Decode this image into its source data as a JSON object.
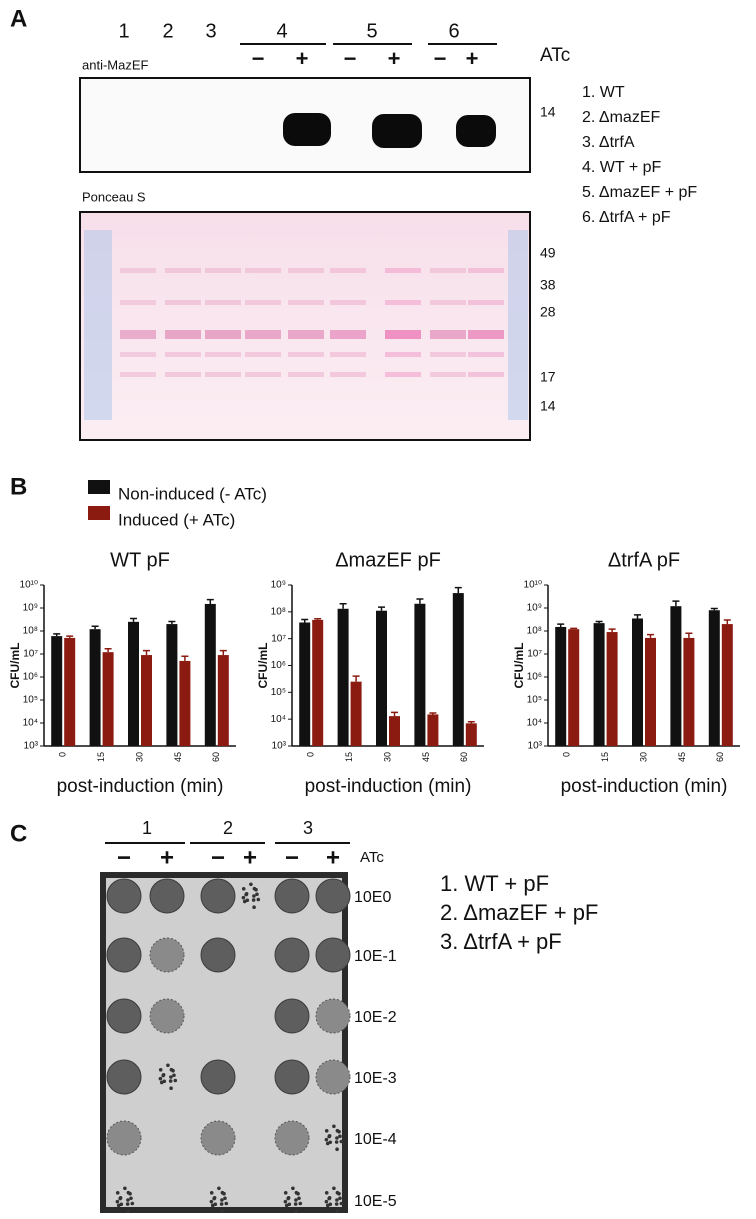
{
  "panel_a": {
    "label": "A",
    "lanes": [
      "1",
      "2",
      "3",
      "4",
      "5",
      "6"
    ],
    "atc_signs": [
      "−",
      "+",
      "−",
      "+",
      "−",
      "+"
    ],
    "atc": "ATc",
    "blot_label": "anti-MazEF",
    "blot_marker": "14",
    "stain_label": "Ponceau S",
    "stain_markers": [
      "49",
      "38",
      "28",
      "17",
      "14"
    ],
    "strains": [
      "1. WT",
      "2. ΔmazEF",
      "3. ΔtrfA",
      "4. WT + pF",
      "5. ΔmazEF + pF",
      "6. ΔtrfA + pF"
    ]
  },
  "panel_b": {
    "label": "B"
  },
  "chart_data": [
    {
      "type": "bar",
      "title": "WT pF",
      "ylabel": "CFU/mL",
      "xlabel": "post-induction (min)",
      "categories": [
        "0",
        "15",
        "30",
        "45",
        "60"
      ],
      "log_scale": true,
      "ylim": [
        1000,
        10000000000
      ],
      "yticks": [
        {
          "value": 1000,
          "label": "10³"
        },
        {
          "value": 10000,
          "label": "10⁴"
        },
        {
          "value": 100000,
          "label": "10⁵"
        },
        {
          "value": 1000000,
          "label": "10⁶"
        },
        {
          "value": 10000000,
          "label": "10⁷"
        },
        {
          "value": 100000000,
          "label": "10⁸"
        },
        {
          "value": 1000000000,
          "label": "10⁹"
        },
        {
          "value": 10000000000,
          "label": "10¹⁰"
        }
      ],
      "series": [
        {
          "name": "Non-induced (- ATc)",
          "color": "#111111",
          "values": [
            60000000,
            120000000,
            250000000,
            200000000,
            1500000000
          ],
          "errors": [
            15000000,
            40000000,
            100000000,
            60000000,
            800000000
          ]
        },
        {
          "name": "Induced (+ ATc)",
          "color": "#8b1a10",
          "values": [
            50000000,
            12000000,
            9000000,
            5000000,
            9000000
          ],
          "errors": [
            10000000,
            5000000,
            5000000,
            3000000,
            5000000
          ]
        }
      ]
    },
    {
      "type": "bar",
      "title": "ΔmazEF pF",
      "ylabel": "CFU/mL",
      "xlabel": "post-induction (min)",
      "categories": [
        "0",
        "15",
        "30",
        "45",
        "60"
      ],
      "log_scale": true,
      "ylim": [
        1000,
        1000000000
      ],
      "yticks": [
        {
          "value": 1000,
          "label": "10³"
        },
        {
          "value": 10000,
          "label": "10⁴"
        },
        {
          "value": 100000,
          "label": "10⁵"
        },
        {
          "value": 1000000,
          "label": "10⁶"
        },
        {
          "value": 10000000,
          "label": "10⁷"
        },
        {
          "value": 100000000,
          "label": "10⁸"
        },
        {
          "value": 1000000000,
          "label": "10⁹"
        }
      ],
      "series": [
        {
          "color": "#111111",
          "values": [
            40000000,
            130000000,
            110000000,
            200000000,
            500000000
          ],
          "errors": [
            12000000,
            70000000,
            40000000,
            100000000,
            300000000
          ]
        },
        {
          "color": "#8b1a10",
          "values": [
            50000000,
            250000,
            13000,
            15000,
            7000
          ],
          "errors": [
            5000000,
            150000,
            5000,
            2000,
            1000
          ]
        }
      ]
    },
    {
      "type": "bar",
      "title": "ΔtrfA pF",
      "ylabel": "CFU/mL",
      "xlabel": "post-induction (min)",
      "categories": [
        "0",
        "15",
        "30",
        "45",
        "60"
      ],
      "log_scale": true,
      "ylim": [
        1000,
        10000000000
      ],
      "yticks": [
        {
          "value": 1000,
          "label": "10³"
        },
        {
          "value": 10000,
          "label": "10⁴"
        },
        {
          "value": 100000,
          "label": "10⁵"
        },
        {
          "value": 1000000,
          "label": "10⁶"
        },
        {
          "value": 10000000,
          "label": "10⁷"
        },
        {
          "value": 100000000,
          "label": "10⁸"
        },
        {
          "value": 1000000000,
          "label": "10⁹"
        },
        {
          "value": 10000000000,
          "label": "10¹⁰"
        }
      ],
      "series": [
        {
          "color": "#111111",
          "values": [
            150000000,
            220000000,
            350000000,
            1200000000,
            800000000
          ],
          "errors": [
            50000000,
            40000000,
            150000000,
            800000000,
            150000000
          ]
        },
        {
          "color": "#8b1a10",
          "values": [
            120000000,
            90000000,
            50000000,
            50000000,
            200000000
          ],
          "errors": [
            10000000,
            30000000,
            20000000,
            30000000,
            100000000
          ]
        }
      ]
    }
  ],
  "panel_c": {
    "label": "C",
    "groups": [
      "1",
      "2",
      "3"
    ],
    "atc_signs": [
      "−",
      "+",
      "−",
      "+",
      "−",
      "+"
    ],
    "atc": "ATc",
    "dilutions": [
      "10E0",
      "10E-1",
      "10E-2",
      "10E-3",
      "10E-4",
      "10E-5"
    ],
    "strains": [
      "1. WT + pF",
      "2. ΔmazEF + pF",
      "3. ΔtrfA + pF"
    ]
  }
}
